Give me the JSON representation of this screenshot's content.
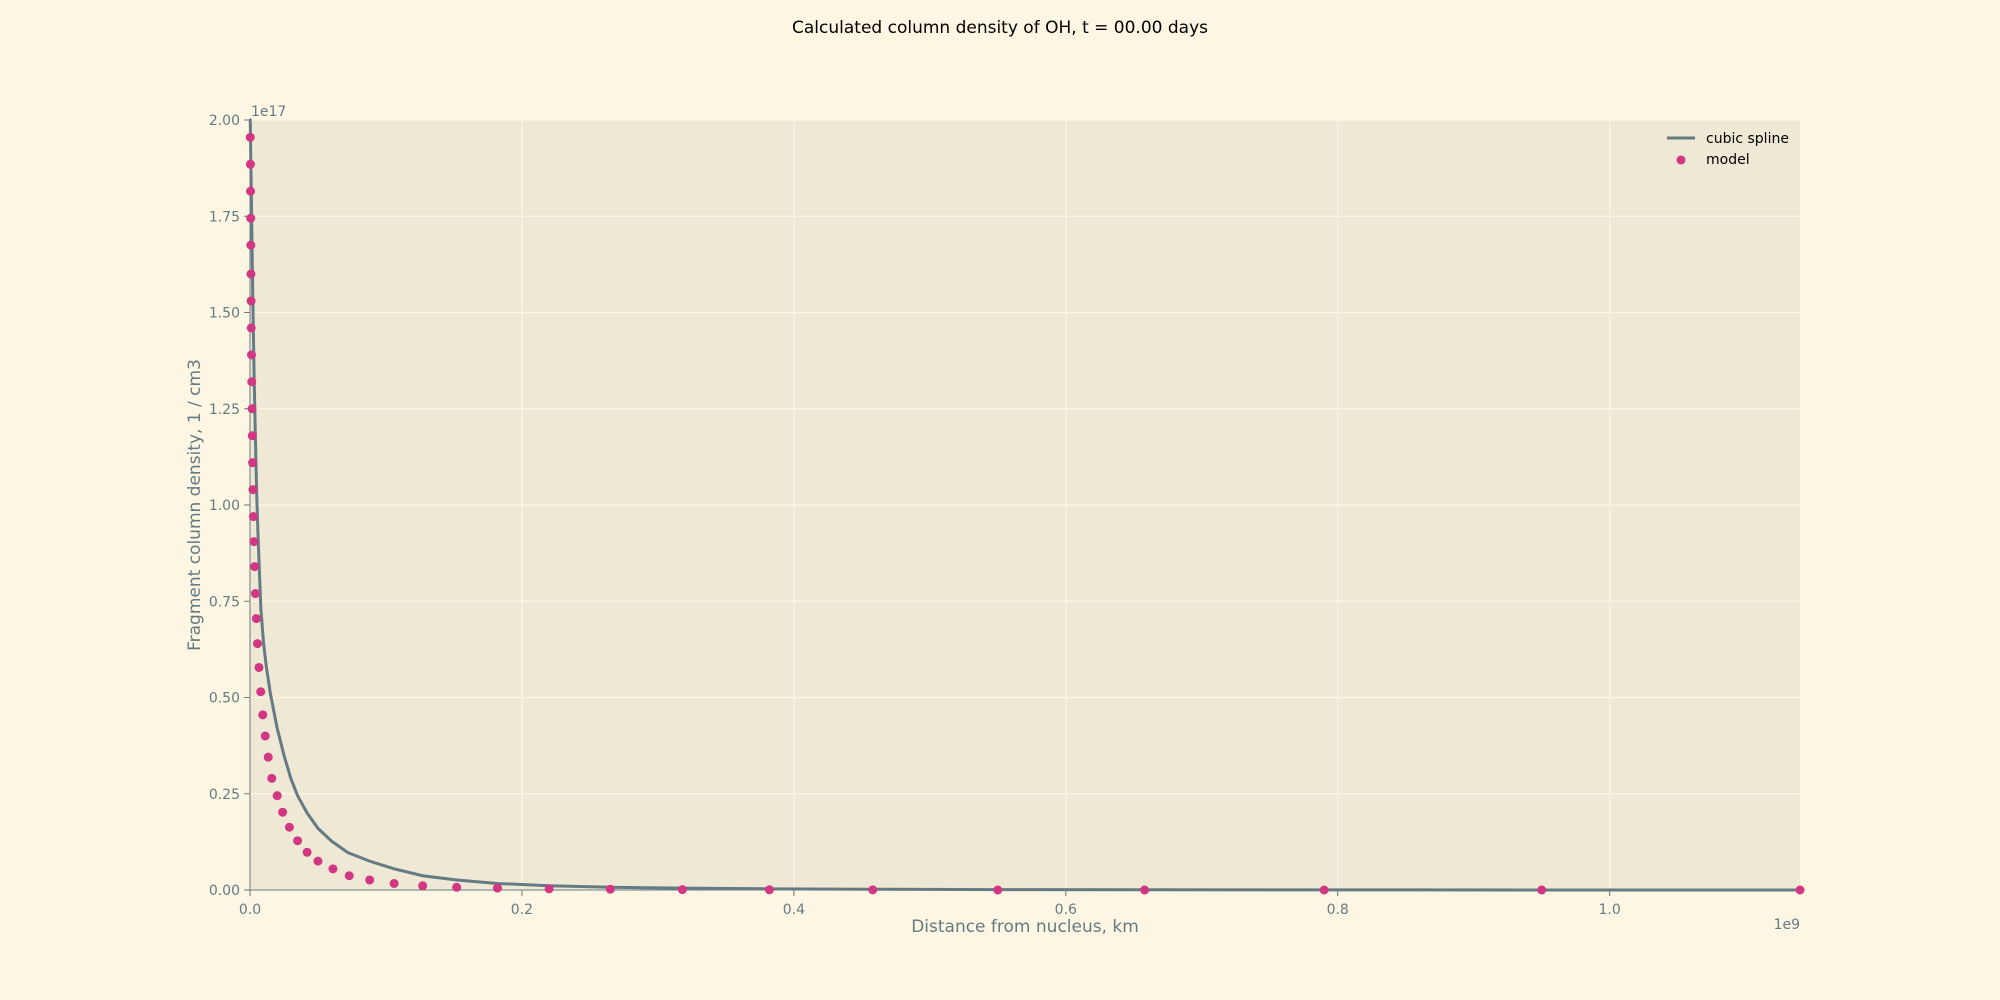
{
  "chart_data": {
    "type": "line",
    "title": "Calculated column density of OH, t = 00.00 days",
    "xlabel": "Distance from nucleus, km",
    "ylabel": "Fragment column density, 1 / cm3",
    "x_offset_label": "1e9",
    "y_offset_label": "1e17",
    "xlim": [
      0,
      1.14
    ],
    "ylim": [
      0,
      2.0
    ],
    "x_ticks": [
      {
        "value": 0.0,
        "label": "0.0"
      },
      {
        "value": 0.2,
        "label": "0.2"
      },
      {
        "value": 0.4,
        "label": "0.4"
      },
      {
        "value": 0.6,
        "label": "0.6"
      },
      {
        "value": 0.8,
        "label": "0.8"
      },
      {
        "value": 1.0,
        "label": "1.0"
      }
    ],
    "y_ticks": [
      {
        "value": 0.0,
        "label": "0.00"
      },
      {
        "value": 0.25,
        "label": "0.25"
      },
      {
        "value": 0.5,
        "label": "0.50"
      },
      {
        "value": 0.75,
        "label": "0.75"
      },
      {
        "value": 1.0,
        "label": "1.00"
      },
      {
        "value": 1.25,
        "label": "1.25"
      },
      {
        "value": 1.5,
        "label": "1.50"
      },
      {
        "value": 1.75,
        "label": "1.75"
      },
      {
        "value": 2.0,
        "label": "2.00"
      }
    ],
    "grid": true,
    "legend_position": "top-right",
    "series": [
      {
        "name": "cubic spline",
        "kind": "line",
        "color": "#657b83",
        "x": [
          0.0002,
          0.0005,
          0.001,
          0.0015,
          0.002,
          0.003,
          0.004,
          0.005,
          0.006,
          0.008,
          0.01,
          0.012,
          0.015,
          0.02,
          0.025,
          0.03,
          0.035,
          0.042,
          0.05,
          0.06,
          0.072,
          0.088,
          0.106,
          0.127,
          0.152,
          0.182,
          0.22,
          0.265,
          0.318,
          0.382,
          0.458,
          0.55,
          0.658,
          0.79,
          0.95,
          1.14
        ],
        "y": [
          2.0,
          1.92,
          1.8,
          1.67,
          1.55,
          1.34,
          1.17,
          1.02,
          0.91,
          0.73,
          0.64,
          0.58,
          0.51,
          0.42,
          0.35,
          0.29,
          0.245,
          0.2,
          0.16,
          0.127,
          0.097,
          0.075,
          0.055,
          0.037,
          0.026,
          0.017,
          0.011,
          0.007,
          0.005,
          0.003,
          0.002,
          0.001,
          0.0006,
          0.0003,
          0.0001,
          0.0
        ]
      },
      {
        "name": "model",
        "kind": "scatter",
        "color": "#d33682",
        "x": [
          0.0002,
          0.0003,
          0.0004,
          0.0005,
          0.0006,
          0.0007,
          0.0008,
          0.0009,
          0.0011,
          0.0013,
          0.0015,
          0.0017,
          0.0019,
          0.0022,
          0.0025,
          0.0029,
          0.0034,
          0.004,
          0.0047,
          0.0055,
          0.0066,
          0.0079,
          0.0094,
          0.0112,
          0.0134,
          0.016,
          0.02,
          0.024,
          0.029,
          0.035,
          0.042,
          0.05,
          0.061,
          0.073,
          0.088,
          0.106,
          0.127,
          0.152,
          0.182,
          0.22,
          0.265,
          0.318,
          0.382,
          0.458,
          0.55,
          0.658,
          0.79,
          0.95,
          1.14
        ],
        "y": [
          1.955,
          1.885,
          1.815,
          1.745,
          1.675,
          1.6,
          1.53,
          1.46,
          1.39,
          1.32,
          1.25,
          1.18,
          1.11,
          1.04,
          0.97,
          0.905,
          0.84,
          0.77,
          0.705,
          0.64,
          0.578,
          0.515,
          0.455,
          0.4,
          0.345,
          0.29,
          0.245,
          0.202,
          0.163,
          0.128,
          0.098,
          0.075,
          0.055,
          0.037,
          0.026,
          0.017,
          0.011,
          0.007,
          0.005,
          0.003,
          0.002,
          0.001,
          0.0006,
          0.0003,
          0.0001,
          0.0,
          0.0,
          0.0,
          0.0
        ]
      }
    ]
  },
  "colors": {
    "figure_background": "#fdf6e3",
    "axes_background": "#eee8d5",
    "grid": "#fdf6e3",
    "axis_text": "#657b83"
  }
}
